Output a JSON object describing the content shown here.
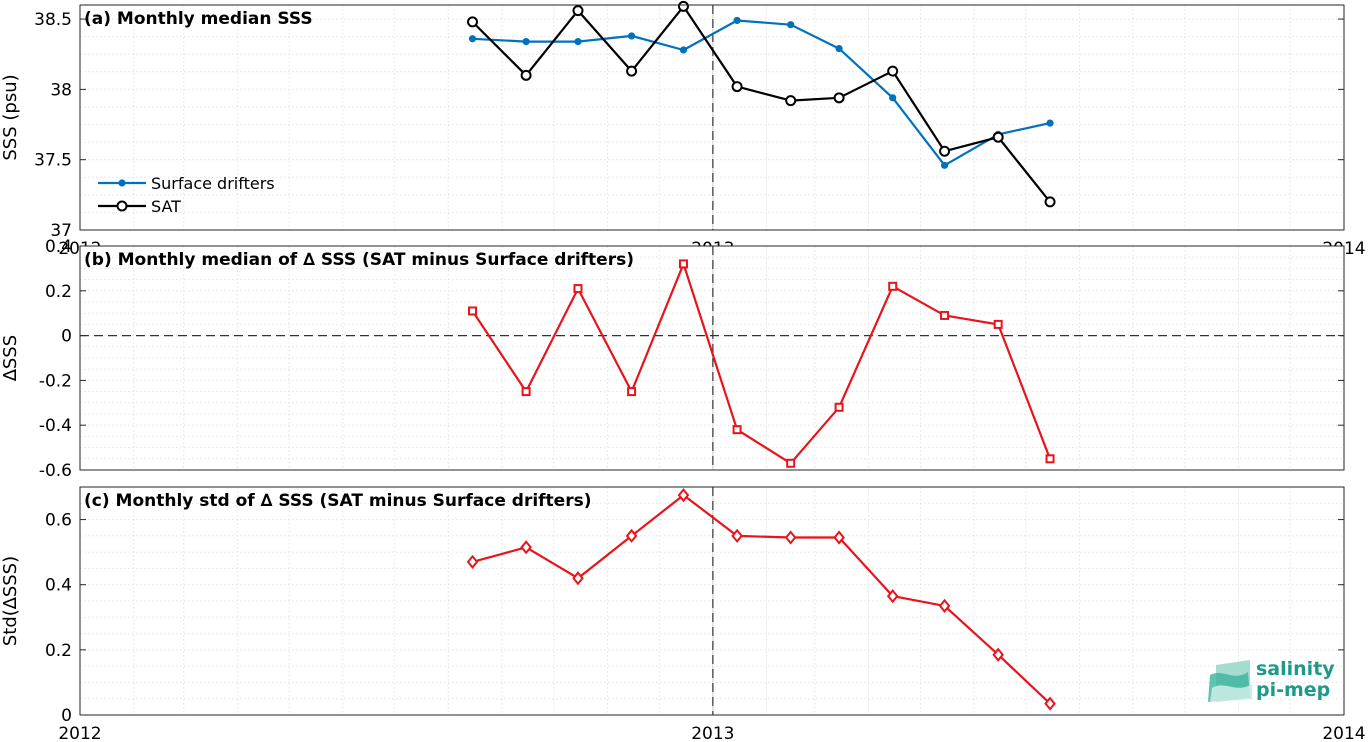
{
  "colors": {
    "drifters": "#0072BD",
    "sat": "#000000",
    "delta": "#E8141B",
    "logo": "#1d9a8a"
  },
  "logo": {
    "line1": "salinity",
    "line2": "pi-mep"
  },
  "chart_data": [
    {
      "type": "line",
      "title": "(a) Monthly median SSS",
      "ylabel": "SSS (psu)",
      "xlabel": "",
      "xlim": [
        "2012-01-01",
        "2014-01-01"
      ],
      "ylim": [
        37,
        38.6
      ],
      "yticks": [
        37,
        37.5,
        38,
        38.5
      ],
      "ytick_labels": [
        "37",
        "37.5",
        "38",
        "38.5"
      ],
      "xticks": [
        "2012-01-01",
        "2013-01-01",
        "2014-01-01"
      ],
      "xtick_labels": [
        "2012",
        "2013",
        "2014"
      ],
      "grid": true,
      "legend": "left",
      "x": [
        "2012-08-15",
        "2012-09-15",
        "2012-10-15",
        "2012-11-15",
        "2012-12-15",
        "2013-01-15",
        "2013-02-15",
        "2013-03-15",
        "2013-04-15",
        "2013-05-15",
        "2013-06-15",
        "2013-07-15",
        "2013-08-15"
      ],
      "series": [
        {
          "name": "Surface drifters",
          "marker": "dot",
          "values": [
            38.36,
            38.34,
            38.34,
            38.38,
            38.28,
            38.49,
            38.46,
            38.29,
            37.94,
            37.46,
            37.68,
            37.76,
            null
          ]
        },
        {
          "name": "SAT",
          "marker": "circle",
          "values": [
            38.48,
            38.1,
            38.56,
            38.13,
            38.59,
            38.02,
            37.92,
            37.94,
            38.13,
            37.56,
            37.66,
            37.2,
            null
          ]
        }
      ]
    },
    {
      "type": "line",
      "title": "(b) Monthly median of ∆ SSS (SAT minus Surface drifters)",
      "ylabel": "∆SSS",
      "xlabel": "",
      "xlim": [
        "2012-01-01",
        "2014-01-01"
      ],
      "ylim": [
        -0.6,
        0.4
      ],
      "yticks": [
        -0.6,
        -0.4,
        -0.2,
        0,
        0.2,
        0.4
      ],
      "ytick_labels": [
        "-0.6",
        "-0.4",
        "-0.2",
        "0",
        "0.2",
        "0.4"
      ],
      "grid": true,
      "x": [
        "2012-08-15",
        "2012-09-15",
        "2012-10-15",
        "2012-11-15",
        "2012-12-15",
        "2013-01-15",
        "2013-02-15",
        "2013-03-15",
        "2013-04-15",
        "2013-05-15",
        "2013-06-15",
        "2013-07-15"
      ],
      "series": [
        {
          "marker": "square",
          "values": [
            0.11,
            -0.25,
            0.21,
            -0.25,
            0.32,
            -0.42,
            -0.57,
            -0.32,
            0.22,
            0.09,
            0.05,
            -0.55
          ]
        }
      ]
    },
    {
      "type": "line",
      "title": "(c) Monthly std of ∆ SSS (SAT minus Surface drifters)",
      "ylabel": "Std(∆SSS)",
      "xlabel": "",
      "xlim": [
        "2012-01-01",
        "2014-01-01"
      ],
      "ylim": [
        0,
        0.7
      ],
      "yticks": [
        0,
        0.2,
        0.4,
        0.6
      ],
      "ytick_labels": [
        "0",
        "0.2",
        "0.4",
        "0.6"
      ],
      "xticks": [
        "2012-01-01",
        "2013-01-01",
        "2014-01-01"
      ],
      "xtick_labels": [
        "2012",
        "2013",
        "2014"
      ],
      "grid": true,
      "x": [
        "2012-08-15",
        "2012-09-15",
        "2012-10-15",
        "2012-11-15",
        "2012-12-15",
        "2013-01-15",
        "2013-02-15",
        "2013-03-15",
        "2013-04-15",
        "2013-05-15",
        "2013-06-15",
        "2013-07-15"
      ],
      "series": [
        {
          "marker": "diamond",
          "values": [
            0.47,
            0.515,
            0.42,
            0.55,
            0.675,
            0.55,
            0.545,
            0.545,
            0.365,
            0.335,
            0.185,
            0.035
          ]
        }
      ]
    }
  ]
}
